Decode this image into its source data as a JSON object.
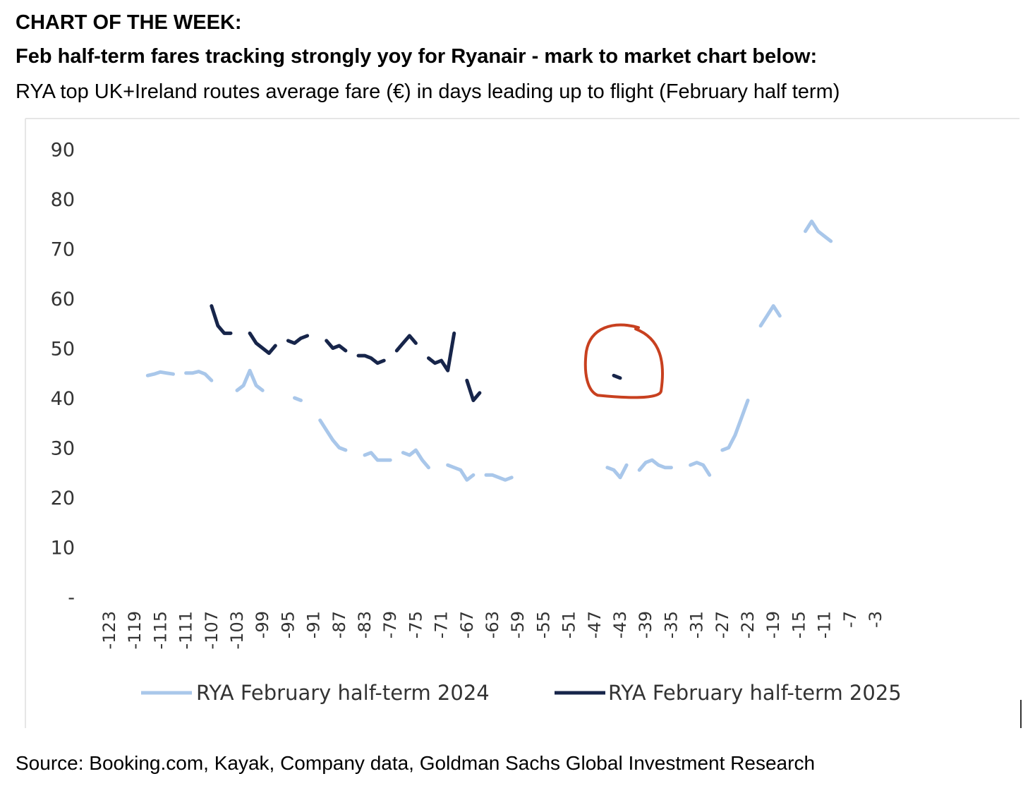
{
  "header": {
    "kicker": "CHART OF THE WEEK:",
    "headline": "Feb half-term fares tracking strongly yoy for Ryanair - mark to market chart below:",
    "subtitle": "RYA top UK+Ireland routes average fare (€) in days leading up to flight (February half term)"
  },
  "source": "Source: Booking.com, Kayak, Company data, Goldman Sachs Global Investment Research",
  "colors": {
    "series_2024": "#a9c7ea",
    "series_2025": "#17254a",
    "annotation_circle": "#c8401f",
    "axis_text": "#333333"
  },
  "chart_data": {
    "type": "line",
    "title": "",
    "xlabel": "",
    "ylabel": "",
    "ylim": [
      0,
      90
    ],
    "xlim": [
      -123,
      -3
    ],
    "yticks": [
      {
        "value": 0,
        "label": "-"
      },
      {
        "value": 10,
        "label": "10"
      },
      {
        "value": 20,
        "label": "20"
      },
      {
        "value": 30,
        "label": "30"
      },
      {
        "value": 40,
        "label": "40"
      },
      {
        "value": 50,
        "label": "50"
      },
      {
        "value": 60,
        "label": "60"
      },
      {
        "value": 70,
        "label": "70"
      },
      {
        "value": 80,
        "label": "80"
      },
      {
        "value": 90,
        "label": "90"
      }
    ],
    "xtick_labels": [
      "-123",
      "-119",
      "-115",
      "-111",
      "-107",
      "-103",
      "-99",
      "-95",
      "-91",
      "-87",
      "-83",
      "-79",
      "-75",
      "-71",
      "-67",
      "-63",
      "-59",
      "-55",
      "-51",
      "-47",
      "-43",
      "-39",
      "-35",
      "-31",
      "-27",
      "-23",
      "-19",
      "-15",
      "-11",
      "-7",
      "-3"
    ],
    "legend_position": "bottom",
    "grid": false,
    "series": [
      {
        "name": "RYA February half-term 2024",
        "segments": [
          [
            [
              -117,
              44.5
            ],
            [
              -116,
              44.8
            ],
            [
              -115,
              45.2
            ],
            [
              -114,
              45.0
            ],
            [
              -113,
              44.8
            ]
          ],
          [
            [
              -111,
              45.0
            ],
            [
              -110,
              45.0
            ],
            [
              -109,
              45.3
            ],
            [
              -108,
              44.8
            ],
            [
              -107,
              43.5
            ]
          ],
          [
            [
              -103,
              41.5
            ],
            [
              -102,
              42.5
            ],
            [
              -101,
              45.5
            ],
            [
              -100,
              42.5
            ],
            [
              -99,
              41.5
            ]
          ],
          [
            [
              -94,
              40.0
            ],
            [
              -93,
              39.5
            ]
          ],
          [
            [
              -90,
              35.5
            ],
            [
              -89,
              33.5
            ],
            [
              -88,
              31.5
            ],
            [
              -87,
              30.0
            ],
            [
              -86,
              29.5
            ]
          ],
          [
            [
              -83,
              28.5
            ],
            [
              -82,
              29.0
            ],
            [
              -81,
              27.5
            ],
            [
              -80,
              27.5
            ],
            [
              -79,
              27.5
            ]
          ],
          [
            [
              -77,
              29.0
            ],
            [
              -76,
              28.5
            ],
            [
              -75,
              29.5
            ],
            [
              -74,
              27.5
            ],
            [
              -73,
              26.0
            ]
          ],
          [
            [
              -70,
              26.5
            ],
            [
              -69,
              26.0
            ],
            [
              -68,
              25.5
            ],
            [
              -67,
              23.5
            ],
            [
              -66,
              24.5
            ]
          ],
          [
            [
              -64,
              24.5
            ],
            [
              -63,
              24.5
            ],
            [
              -62,
              24.0
            ],
            [
              -61,
              23.5
            ],
            [
              -60,
              24.0
            ]
          ],
          [
            [
              -45,
              26.0
            ],
            [
              -44,
              25.5
            ],
            [
              -43,
              24.0
            ],
            [
              -42,
              26.5
            ]
          ],
          [
            [
              -40,
              25.5
            ],
            [
              -39,
              27.0
            ],
            [
              -38,
              27.5
            ],
            [
              -37,
              26.5
            ],
            [
              -36,
              26.0
            ],
            [
              -35,
              26.0
            ]
          ],
          [
            [
              -32,
              26.5
            ],
            [
              -31,
              27.0
            ],
            [
              -30,
              26.5
            ],
            [
              -29,
              24.5
            ]
          ],
          [
            [
              -27,
              29.5
            ],
            [
              -26,
              30.0
            ],
            [
              -25,
              32.5
            ],
            [
              -24,
              36.0
            ],
            [
              -23,
              39.5
            ]
          ],
          [
            [
              -21,
              54.5
            ],
            [
              -20,
              56.5
            ],
            [
              -19,
              58.5
            ],
            [
              -18,
              56.5
            ]
          ],
          [
            [
              -14,
              73.5
            ],
            [
              -13,
              75.5
            ],
            [
              -12,
              73.5
            ],
            [
              -11,
              72.5
            ],
            [
              -10,
              71.5
            ]
          ]
        ]
      },
      {
        "name": "RYA February half-term 2025",
        "segments": [
          [
            [
              -107,
              58.5
            ],
            [
              -106,
              54.5
            ],
            [
              -105,
              53.0
            ],
            [
              -104,
              53.0
            ]
          ],
          [
            [
              -101,
              53.0
            ],
            [
              -100,
              51.0
            ],
            [
              -99,
              50.0
            ],
            [
              -98,
              49.0
            ],
            [
              -97,
              50.5
            ]
          ],
          [
            [
              -95,
              51.5
            ],
            [
              -94,
              51.0
            ],
            [
              -93,
              52.0
            ],
            [
              -92,
              52.5
            ]
          ],
          [
            [
              -89,
              51.5
            ],
            [
              -88,
              50.0
            ],
            [
              -87,
              50.5
            ],
            [
              -86,
              49.5
            ]
          ],
          [
            [
              -84,
              48.5
            ],
            [
              -83,
              48.5
            ],
            [
              -82,
              48.0
            ],
            [
              -81,
              47.0
            ],
            [
              -80,
              47.5
            ]
          ],
          [
            [
              -78,
              49.5
            ],
            [
              -77,
              51.0
            ],
            [
              -76,
              52.5
            ],
            [
              -75,
              51.0
            ]
          ],
          [
            [
              -73,
              48.0
            ],
            [
              -72,
              47.0
            ],
            [
              -71,
              47.5
            ],
            [
              -70,
              45.5
            ],
            [
              -69,
              53.0
            ]
          ],
          [
            [
              -67,
              43.5
            ],
            [
              -66,
              39.5
            ],
            [
              -65,
              41.0
            ]
          ],
          [
            [
              -44,
              44.5
            ],
            [
              -43,
              44.0
            ]
          ]
        ]
      }
    ],
    "annotations": [
      {
        "type": "hand-drawn circle",
        "center_x": -43,
        "center_y": 44.5
      }
    ]
  }
}
